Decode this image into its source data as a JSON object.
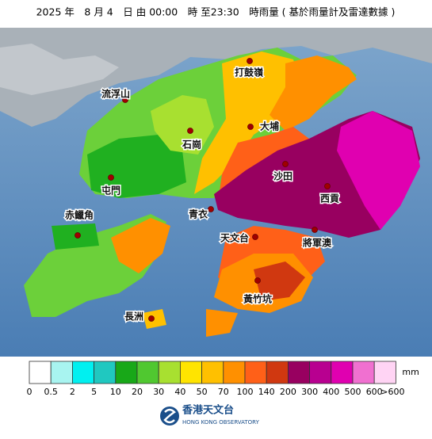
{
  "header": {
    "title": "2025 年　8 月 4　日 由 00:00　時 至23:30　時雨量 ( 基於雨量計及雷達數據 )"
  },
  "places": [
    {
      "label": "打鼓嶺"
    },
    {
      "label": "流浮山"
    },
    {
      "label": "大埔"
    },
    {
      "label": "石崗"
    },
    {
      "label": "沙田"
    },
    {
      "label": "屯門"
    },
    {
      "label": "西貢"
    },
    {
      "label": "青衣"
    },
    {
      "label": "赤鱲角"
    },
    {
      "label": "天文台"
    },
    {
      "label": "將軍澳"
    },
    {
      "label": "黃竹坑"
    },
    {
      "label": "長洲"
    }
  ],
  "legend": {
    "unit": "mm",
    "colors": [
      "#ffffff",
      "#a8f4f0",
      "#00f0f0",
      "#20c8c0",
      "#18a818",
      "#50c830",
      "#a8e030",
      "#ffe400",
      "#ffc000",
      "#ff9000",
      "#ff6018",
      "#d03810",
      "#980060",
      "#b80090",
      "#e000b0",
      "#f070d0",
      "#ffd4f4"
    ],
    "labels": [
      "0",
      "0.5",
      "2",
      "5",
      "10",
      "20",
      "30",
      "40",
      "50",
      "70",
      "100",
      "140",
      "200",
      "300",
      "400",
      "500",
      "600",
      ">600"
    ]
  },
  "logo": {
    "chinese": "香港天文台",
    "english": "HONG KONG OBSERVATORY"
  }
}
